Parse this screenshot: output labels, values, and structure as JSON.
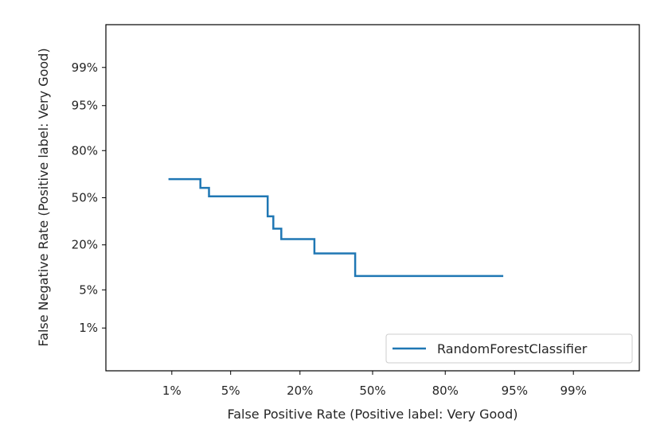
{
  "chart_data": {
    "type": "line",
    "title": "",
    "xlabel": "False Positive Rate (Positive label: Very Good)",
    "ylabel": "False Negative Rate (Positive label: Very Good)",
    "x_ticks": [
      "1%",
      "5%",
      "20%",
      "50%",
      "80%",
      "95%",
      "99%"
    ],
    "y_ticks": [
      "1%",
      "5%",
      "20%",
      "50%",
      "80%",
      "95%",
      "99%"
    ],
    "x_tick_values": [
      0.01,
      0.05,
      0.2,
      0.5,
      0.8,
      0.95,
      0.99
    ],
    "y_tick_values": [
      0.01,
      0.05,
      0.2,
      0.5,
      0.8,
      0.95,
      0.99
    ],
    "scale": "normal-deviate",
    "xlim": [
      0.001,
      0.999
    ],
    "ylim": [
      0.001,
      0.999
    ],
    "grid": false,
    "legend": {
      "position": "lower right"
    },
    "series": [
      {
        "name": "RandomForestClassifier",
        "color": "#1f77b4",
        "x": [
          0.009,
          0.023,
          0.023,
          0.029,
          0.029,
          0.112,
          0.112,
          0.125,
          0.125,
          0.145,
          0.145,
          0.25,
          0.25,
          0.42,
          0.42,
          0.935
        ],
        "y": [
          0.63,
          0.63,
          0.57,
          0.57,
          0.51,
          0.51,
          0.37,
          0.37,
          0.29,
          0.29,
          0.23,
          0.23,
          0.16,
          0.16,
          0.081,
          0.081
        ]
      }
    ]
  }
}
